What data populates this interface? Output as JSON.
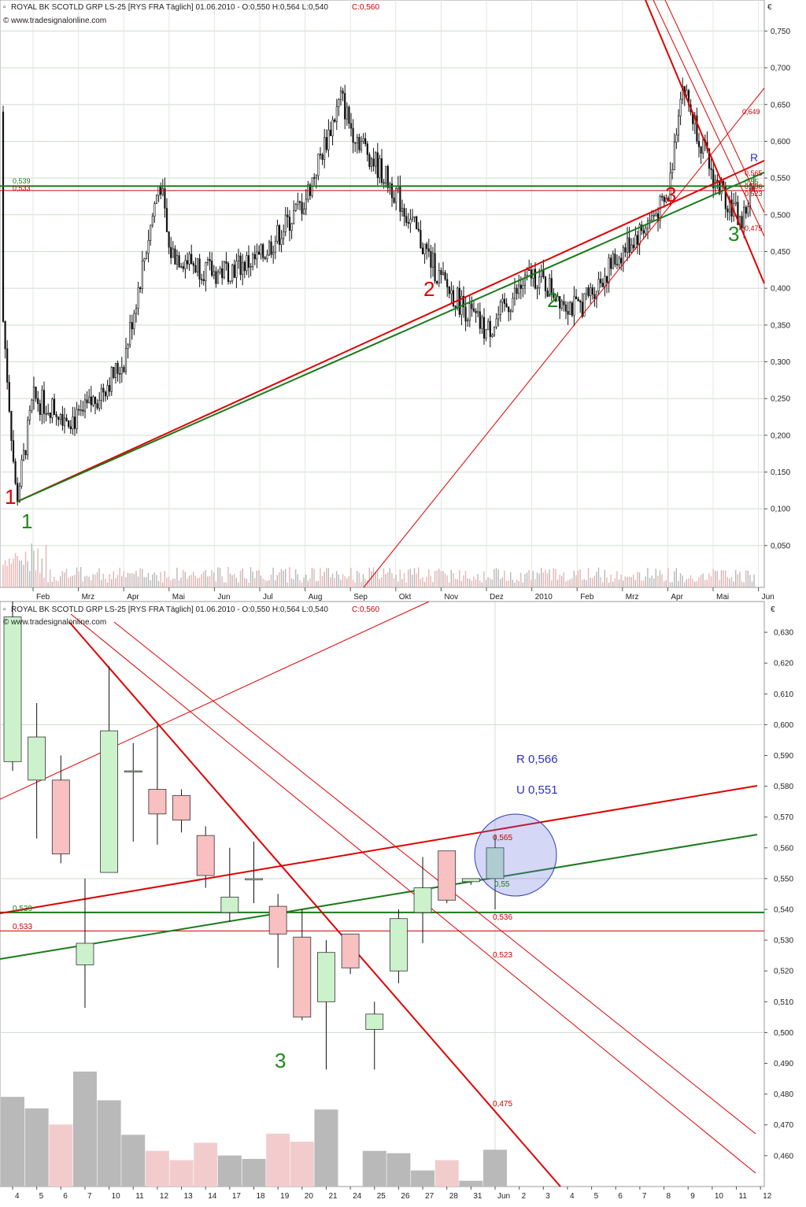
{
  "top": {
    "header": "ROYAL BK SCOTLD GRP LS-25 [RYS FRA  Täglich] 01.06.2010 - O:0,550 H:0,564 L:0,540",
    "close_label": "C:0,560",
    "source": "www.tradesignalonline.com",
    "currency": "€",
    "months": [
      "Feb",
      "Mrz",
      "Apr",
      "Mai",
      "Jun",
      "Jul",
      "Aug",
      "Sep",
      "Okt",
      "Nov",
      "Dez",
      "2010",
      "Feb",
      "Mrz",
      "Apr",
      "Mai",
      "Jun"
    ],
    "wave_labels": [
      {
        "text": "1",
        "color": "red"
      },
      {
        "text": "1",
        "color": "green"
      },
      {
        "text": "2",
        "color": "red"
      },
      {
        "text": "2",
        "color": "green"
      },
      {
        "text": "3",
        "color": "red"
      },
      {
        "text": "3",
        "color": "green"
      },
      {
        "text": "R",
        "color": "blue"
      }
    ],
    "line_labels": [
      "0,539",
      "0,533",
      "0,649",
      "0,565",
      "0,55",
      "0,536",
      "0,523",
      "0,475"
    ]
  },
  "bottom": {
    "header": "ROYAL BK SCOTLD GRP LS-25 [RYS FRA  Täglich] 01.06.2010 - O:0,550 H:0,564 L:0,540",
    "close_label": "C:0,560",
    "source": "www.tradesignalonline.com",
    "currency": "€",
    "annot_r": "R 0,566",
    "annot_u": "U 0,551",
    "wave_label": "3",
    "line_labels": {
      "l539": "0,539",
      "l533": "0,533",
      "l565": "0,565",
      "l55": "0,55",
      "l536": "0,536",
      "l523": "0,523",
      "l475": "0,475"
    }
  },
  "chart_data": [
    {
      "type": "candlestick",
      "title": "ROYAL BK SCOTLD GRP LS-25 [RYS FRA  Täglich]",
      "period": "daily, Jan 2009 - Jun 2010",
      "ylim": [
        0.0,
        0.78
      ],
      "y_ticks": [
        "0,050",
        "0,100",
        "0,150",
        "0,200",
        "0,250",
        "0,300",
        "0,350",
        "0,400",
        "0,450",
        "0,500",
        "0,550",
        "0,600",
        "0,650",
        "0,700",
        "0,750"
      ],
      "x_ticks": [
        "Feb",
        "Mrz",
        "Apr",
        "Mai",
        "Jun",
        "Jul",
        "Aug",
        "Sep",
        "Okt",
        "Nov",
        "Dez",
        "2010",
        "Feb",
        "Mrz",
        "Apr",
        "Mai",
        "Jun"
      ],
      "price_path": [
        [
          "2009-01",
          0.64
        ],
        [
          "2009-01-20",
          0.11
        ],
        [
          "2009-02",
          0.25
        ],
        [
          "2009-03",
          0.22
        ],
        [
          "2009-04",
          0.3
        ],
        [
          "2009-04-25",
          0.55
        ],
        [
          "2009-05",
          0.45
        ],
        [
          "2009-06",
          0.42
        ],
        [
          "2009-07",
          0.44
        ],
        [
          "2009-08",
          0.52
        ],
        [
          "2009-08-25",
          0.66
        ],
        [
          "2009-09",
          0.62
        ],
        [
          "2009-10",
          0.53
        ],
        [
          "2009-11",
          0.41
        ],
        [
          "2009-12",
          0.34
        ],
        [
          "2010-01",
          0.42
        ],
        [
          "2010-02",
          0.37
        ],
        [
          "2010-03",
          0.45
        ],
        [
          "2010-04",
          0.52
        ],
        [
          "2010-04-10",
          0.68
        ],
        [
          "2010-05",
          0.55
        ],
        [
          "2010-05-20",
          0.49
        ],
        [
          "2010-06",
          0.56
        ]
      ],
      "horizontal_lines": [
        0.539,
        0.533
      ],
      "trendline_labels": [
        0.649,
        0.565,
        0.55,
        0.536,
        0.523,
        0.475
      ],
      "volume": "shown as bars along bottom"
    },
    {
      "type": "candlestick",
      "title": "ROYAL BK SCOTLD GRP LS-25 [RYS FRA  Täglich]",
      "period": "daily, 2010-05-04 to 2010-06-01",
      "ylim": [
        0.45,
        0.64
      ],
      "y_ticks": [
        "0,460",
        "0,470",
        "0,480",
        "0,490",
        "0,500",
        "0,510",
        "0,520",
        "0,530",
        "0,540",
        "0,550",
        "0,560",
        "0,570",
        "0,580",
        "0,590",
        "0,600",
        "0,610",
        "0,620",
        "0,630"
      ],
      "x_ticks": [
        "4",
        "5",
        "6",
        "7",
        "10",
        "11",
        "12",
        "13",
        "14",
        "17",
        "18",
        "19",
        "20",
        "21",
        "24",
        "25",
        "26",
        "27",
        "28",
        "31",
        "Jun",
        "2",
        "3",
        "4",
        "5",
        "6",
        "7",
        "8",
        "9",
        "10",
        "11",
        "12"
      ],
      "candles": [
        {
          "date": "4",
          "open": 0.588,
          "high": 0.64,
          "low": 0.585,
          "close": 0.635
        },
        {
          "date": "5",
          "open": 0.582,
          "high": 0.607,
          "low": 0.563,
          "close": 0.596
        },
        {
          "date": "6",
          "open": 0.582,
          "high": 0.59,
          "low": 0.555,
          "close": 0.558
        },
        {
          "date": "7",
          "open": 0.522,
          "high": 0.55,
          "low": 0.508,
          "close": 0.529
        },
        {
          "date": "10",
          "open": 0.552,
          "high": 0.619,
          "low": 0.552,
          "close": 0.598
        },
        {
          "date": "11",
          "open": 0.585,
          "high": 0.594,
          "low": 0.562,
          "close": 0.585
        },
        {
          "date": "12",
          "open": 0.579,
          "high": 0.6,
          "low": 0.561,
          "close": 0.571
        },
        {
          "date": "13",
          "open": 0.577,
          "high": 0.579,
          "low": 0.565,
          "close": 0.569
        },
        {
          "date": "14",
          "open": 0.564,
          "high": 0.567,
          "low": 0.547,
          "close": 0.551
        },
        {
          "date": "17",
          "open": 0.539,
          "high": 0.56,
          "low": 0.536,
          "close": 0.544
        },
        {
          "date": "18",
          "open": 0.55,
          "high": 0.562,
          "low": 0.542,
          "close": 0.55
        },
        {
          "date": "19",
          "open": 0.541,
          "high": 0.545,
          "low": 0.521,
          "close": 0.532
        },
        {
          "date": "20",
          "open": 0.531,
          "high": 0.54,
          "low": 0.504,
          "close": 0.505
        },
        {
          "date": "21",
          "open": 0.51,
          "high": 0.53,
          "low": 0.488,
          "close": 0.526
        },
        {
          "date": "24",
          "open": 0.532,
          "high": 0.532,
          "low": 0.519,
          "close": 0.521
        },
        {
          "date": "25",
          "open": 0.501,
          "high": 0.51,
          "low": 0.488,
          "close": 0.506
        },
        {
          "date": "26",
          "open": 0.52,
          "high": 0.54,
          "low": 0.516,
          "close": 0.537
        },
        {
          "date": "27",
          "open": 0.539,
          "high": 0.557,
          "low": 0.529,
          "close": 0.547
        },
        {
          "date": "28",
          "open": 0.559,
          "high": 0.559,
          "low": 0.542,
          "close": 0.543
        },
        {
          "date": "31",
          "open": 0.549,
          "high": 0.55,
          "low": 0.548,
          "close": 0.55
        },
        {
          "date": "Jun",
          "open": 0.55,
          "high": 0.564,
          "low": 0.54,
          "close": 0.56
        }
      ],
      "volume": [
        0.78,
        0.68,
        0.54,
        1.0,
        0.75,
        0.45,
        0.31,
        0.23,
        0.38,
        0.27,
        0.24,
        0.46,
        0.39,
        0.67,
        0.0,
        0.31,
        0.29,
        0.14,
        0.23,
        0.05,
        0.32
      ],
      "horizontal_lines": [
        0.539,
        0.533
      ],
      "trendline_labels": [
        0.565,
        0.55,
        0.536,
        0.523,
        0.475
      ],
      "annotations": [
        "R 0,566",
        "U 0,551",
        "3"
      ]
    }
  ]
}
